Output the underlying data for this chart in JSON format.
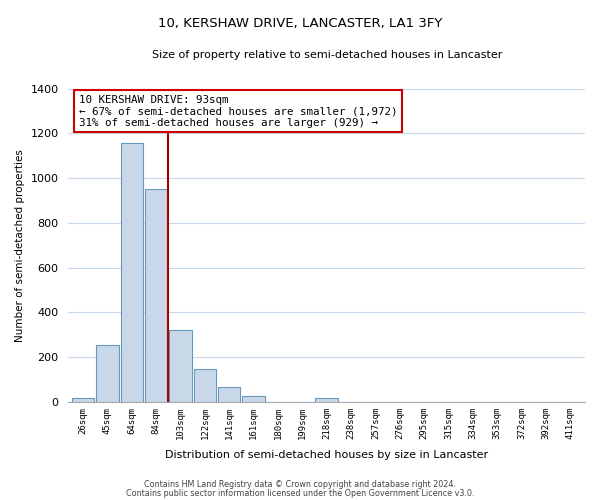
{
  "title": "10, KERSHAW DRIVE, LANCASTER, LA1 3FY",
  "subtitle": "Size of property relative to semi-detached houses in Lancaster",
  "xlabel": "Distribution of semi-detached houses by size in Lancaster",
  "ylabel": "Number of semi-detached properties",
  "bin_labels": [
    "26sqm",
    "45sqm",
    "64sqm",
    "84sqm",
    "103sqm",
    "122sqm",
    "141sqm",
    "161sqm",
    "180sqm",
    "199sqm",
    "218sqm",
    "238sqm",
    "257sqm",
    "276sqm",
    "295sqm",
    "315sqm",
    "334sqm",
    "353sqm",
    "372sqm",
    "392sqm",
    "411sqm"
  ],
  "bar_heights": [
    15,
    255,
    1155,
    950,
    320,
    145,
    68,
    25,
    0,
    0,
    15,
    0,
    0,
    0,
    0,
    0,
    0,
    0,
    0,
    0,
    0
  ],
  "bar_color": "#c8d8e8",
  "bar_edge_color": "#6699bb",
  "vline_x": 3.5,
  "vline_color": "#aa0000",
  "annotation_title": "10 KERSHAW DRIVE: 93sqm",
  "annotation_line1": "← 67% of semi-detached houses are smaller (1,972)",
  "annotation_line2": "31% of semi-detached houses are larger (929) →",
  "annotation_box_color": "#ffffff",
  "annotation_box_edge": "#cc0000",
  "ylim": [
    0,
    1400
  ],
  "yticks": [
    0,
    200,
    400,
    600,
    800,
    1000,
    1200,
    1400
  ],
  "footer1": "Contains HM Land Registry data © Crown copyright and database right 2024.",
  "footer2": "Contains public sector information licensed under the Open Government Licence v3.0.",
  "bg_color": "#ffffff",
  "grid_color": "#c8d8ee"
}
